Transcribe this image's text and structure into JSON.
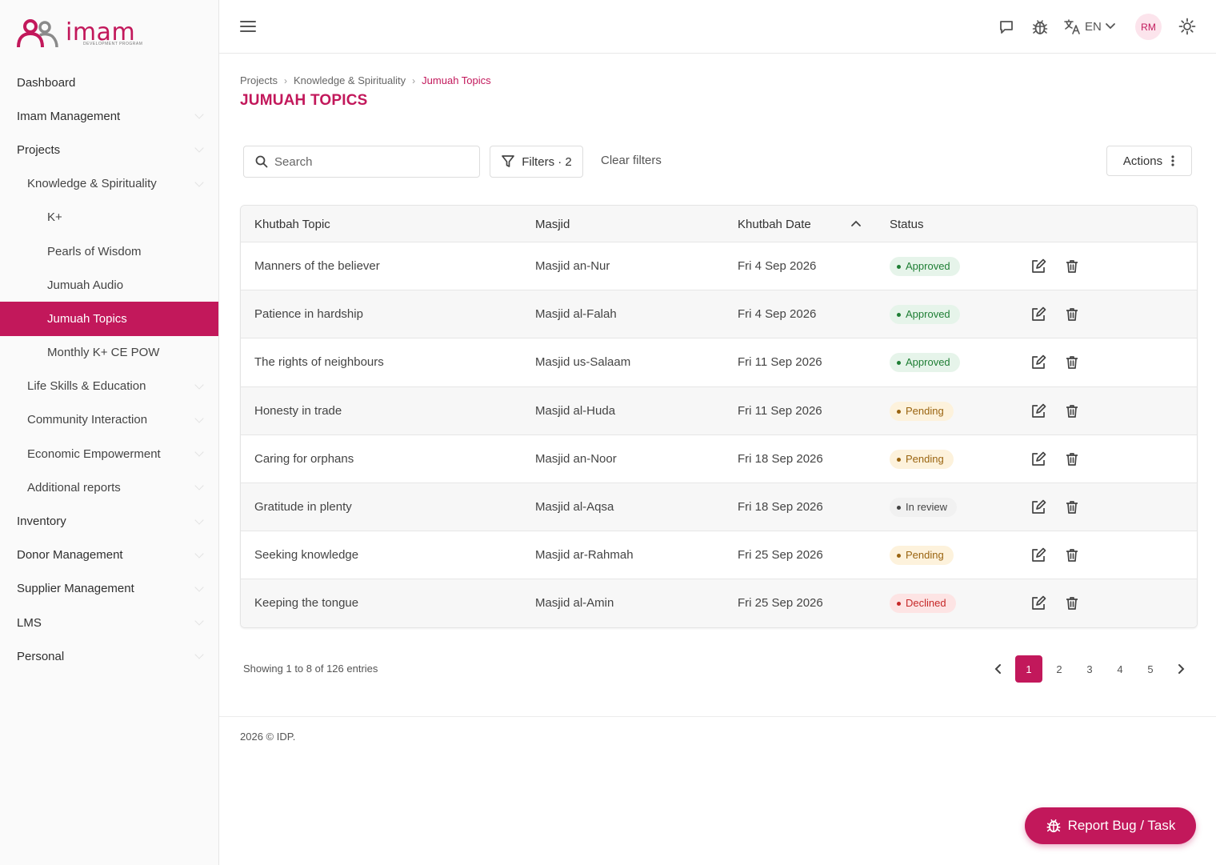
{
  "brand": {
    "logo_text": "imam",
    "logo_sub": "DEVELOPMENT PROGRAM"
  },
  "sidebar": {
    "items": [
      {
        "label": "Dashboard",
        "level": 1,
        "chevron": false
      },
      {
        "label": "Imam Management",
        "level": 1,
        "chevron": true
      },
      {
        "label": "Projects",
        "level": 1,
        "chevron": true
      },
      {
        "label": "Knowledge & Spirituality",
        "level": 2,
        "chevron": true
      },
      {
        "label": "K+",
        "level": 3,
        "chevron": false
      },
      {
        "label": "Pearls of Wisdom",
        "level": 3,
        "chevron": false
      },
      {
        "label": "Jumuah Audio",
        "level": 3,
        "chevron": false
      },
      {
        "label": "Jumuah Topics",
        "level": 3,
        "chevron": false,
        "active": true
      },
      {
        "label": "Monthly K+ CE POW",
        "level": 3,
        "chevron": false
      },
      {
        "label": "Life Skills & Education",
        "level": 2,
        "chevron": true
      },
      {
        "label": "Community Interaction",
        "level": 2,
        "chevron": true
      },
      {
        "label": "Economic Empowerment",
        "level": 2,
        "chevron": true
      },
      {
        "label": "Additional reports",
        "level": 2,
        "chevron": true
      },
      {
        "label": "Inventory",
        "level": 1,
        "chevron": true
      },
      {
        "label": "Donor Management",
        "level": 1,
        "chevron": true
      },
      {
        "label": "Supplier Management",
        "level": 1,
        "chevron": true
      },
      {
        "label": "LMS",
        "level": 1,
        "chevron": true
      },
      {
        "label": "Personal",
        "level": 1,
        "chevron": true
      }
    ]
  },
  "topbar": {
    "language": "EN",
    "avatar_initials": "RM"
  },
  "breadcrumb": {
    "items": [
      "Projects",
      "Knowledge & Spirituality",
      "Jumuah Topics"
    ]
  },
  "page": {
    "title": "JUMUAH TOPICS"
  },
  "toolbar": {
    "search_placeholder": "Search",
    "filters_label": "Filters · 2",
    "clear_filters_label": "Clear filters",
    "actions_label": "Actions"
  },
  "table": {
    "columns": [
      "Khutbah Topic",
      "Masjid",
      "Khutbah Date",
      "Status"
    ],
    "sort_column": "Khutbah Date",
    "sort_direction": "ascending",
    "rows": [
      {
        "topic": "Manners of the believer",
        "masjid": "Masjid an-Nur",
        "date": "Fri 4 Sep 2026",
        "status": "Approved"
      },
      {
        "topic": "Patience in hardship",
        "masjid": "Masjid al-Falah",
        "date": "Fri 4 Sep 2026",
        "status": "Approved"
      },
      {
        "topic": "The rights of neighbours",
        "masjid": "Masjid us-Salaam",
        "date": "Fri 11 Sep 2026",
        "status": "Approved"
      },
      {
        "topic": "Honesty in trade",
        "masjid": "Masjid al-Huda",
        "date": "Fri 11 Sep 2026",
        "status": "Pending"
      },
      {
        "topic": "Caring for orphans",
        "masjid": "Masjid an-Noor",
        "date": "Fri 18 Sep 2026",
        "status": "Pending"
      },
      {
        "topic": "Gratitude in plenty",
        "masjid": "Masjid al-Aqsa",
        "date": "Fri 18 Sep 2026",
        "status": "In review"
      },
      {
        "topic": "Seeking knowledge",
        "masjid": "Masjid ar-Rahmah",
        "date": "Fri 25 Sep 2026",
        "status": "Pending"
      },
      {
        "topic": "Keeping the tongue",
        "masjid": "Masjid al-Amin",
        "date": "Fri 25 Sep 2026",
        "status": "Declined"
      }
    ]
  },
  "pagination": {
    "summary": "Showing 1 to 8 of 126 entries",
    "pages": [
      "1",
      "2",
      "3",
      "4",
      "5"
    ],
    "current": "1"
  },
  "footer": {
    "copyright": "2026 © IDP."
  },
  "report_button": {
    "label": "Report Bug / Task"
  },
  "colors": {
    "accent": "#c2185b",
    "approved": "#1e7e34",
    "pending": "#9a6410",
    "declined": "#c62828"
  }
}
